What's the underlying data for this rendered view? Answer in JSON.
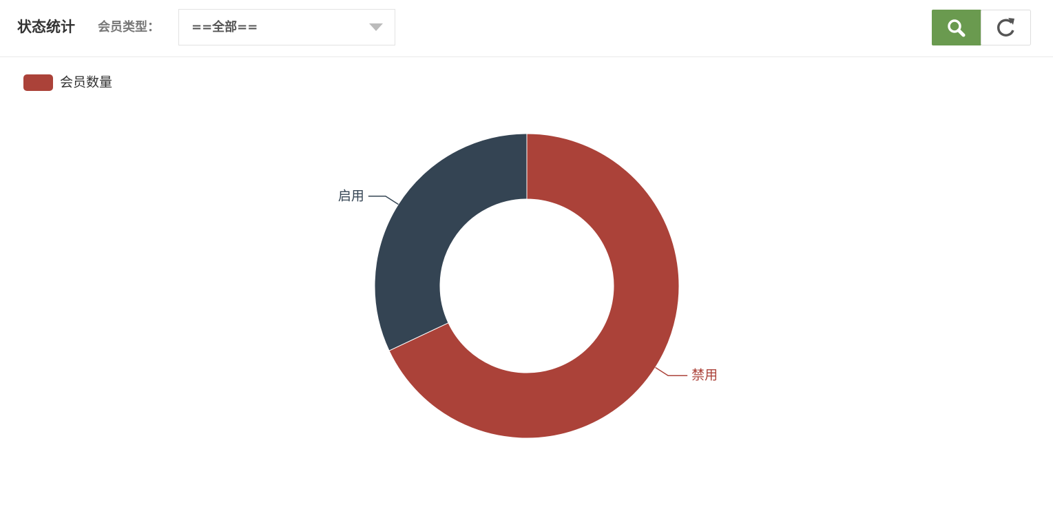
{
  "header": {
    "title": "状态统计",
    "filter_label": "会员类型：",
    "filter_value": "==全部=="
  },
  "chart_data": {
    "type": "pie",
    "categories": [
      "禁用",
      "启用"
    ],
    "series": [
      {
        "name": "会员数量",
        "values": [
          68,
          32
        ]
      }
    ],
    "colors": [
      "#ab4239",
      "#344453"
    ],
    "donut": true
  }
}
